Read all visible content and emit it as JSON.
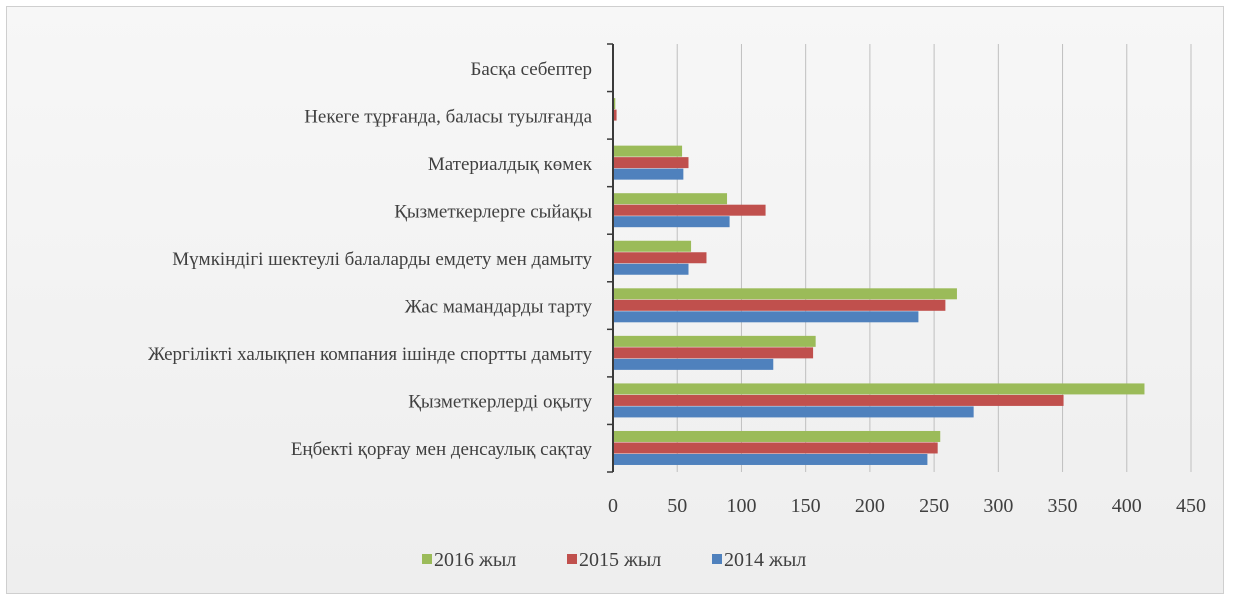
{
  "chart_data": {
    "type": "bar",
    "orientation": "horizontal",
    "categories": [
      "Басқа себептер",
      "Некеге тұрғанда, баласы туылғанда",
      "Материалдық көмек",
      "Қызметкерлерге сыйақы",
      "Мүмкіндігі шектеулі балаларды емдету мен дамыту",
      "Жас мамандарды тарту",
      "Жергілікті халықпен компания ішінде спортты дамыту",
      "Қызметкерлерді оқыту",
      "Еңбекті қорғау мен денсаулық сақтау"
    ],
    "series": [
      {
        "name": "2016 жыл",
        "color": "#9bbb59",
        "values": [
          0,
          1,
          53,
          88,
          60,
          267,
          157,
          413,
          254
        ]
      },
      {
        "name": "2015 жыл",
        "color": "#c0504d",
        "values": [
          0,
          2,
          58,
          118,
          72,
          258,
          155,
          350,
          252
        ]
      },
      {
        "name": "2014 жыл",
        "color": "#4f81bd",
        "values": [
          0,
          0,
          54,
          90,
          58,
          237,
          124,
          280,
          244
        ]
      }
    ],
    "xlim": [
      0,
      450
    ],
    "x_ticks": [
      "0",
      "50",
      "100",
      "150",
      "200",
      "250",
      "300",
      "350",
      "400",
      "450"
    ],
    "grid": "vertical",
    "legend_position": "bottom",
    "legend_order": [
      "2016 жыл",
      "2015 жыл",
      "2014 жыл"
    ],
    "title": "",
    "xlabel": "",
    "ylabel": ""
  }
}
